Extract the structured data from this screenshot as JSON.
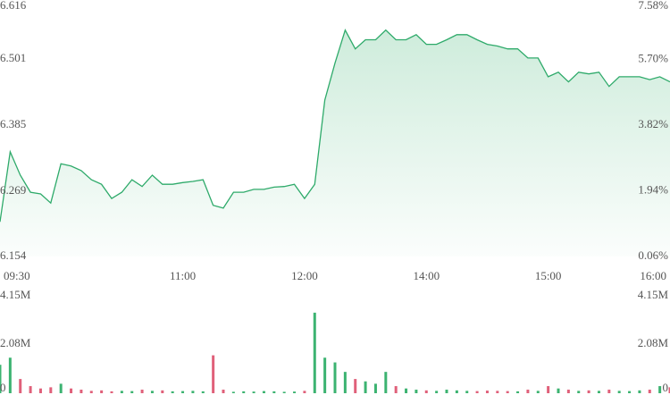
{
  "chart_data": [
    {
      "type": "area",
      "x": [
        "09:30",
        "09:35",
        "09:40",
        "09:45",
        "09:50",
        "09:55",
        "10:00",
        "10:05",
        "10:10",
        "10:15",
        "10:20",
        "10:25",
        "10:30",
        "10:35",
        "10:40",
        "10:45",
        "10:50",
        "10:55",
        "11:00",
        "11:05",
        "11:10",
        "11:15",
        "11:20",
        "11:25",
        "11:30",
        "11:35",
        "11:40",
        "11:45",
        "11:50",
        "11:55",
        "12:00",
        "13:05",
        "13:10",
        "13:15",
        "13:20",
        "13:25",
        "13:30",
        "13:35",
        "13:40",
        "13:45",
        "13:50",
        "13:55",
        "14:00",
        "14:05",
        "14:10",
        "14:15",
        "14:20",
        "14:25",
        "14:30",
        "14:35",
        "14:40",
        "14:45",
        "14:50",
        "14:55",
        "15:00",
        "15:05",
        "15:10",
        "15:15",
        "15:20",
        "15:25",
        "15:30",
        "15:35",
        "15:40",
        "15:45",
        "15:50",
        "15:55",
        "16:00"
      ],
      "values": [
        6.215,
        6.338,
        6.297,
        6.267,
        6.264,
        6.248,
        6.317,
        6.313,
        6.305,
        6.289,
        6.281,
        6.256,
        6.267,
        6.289,
        6.277,
        6.297,
        6.281,
        6.281,
        6.284,
        6.286,
        6.289,
        6.244,
        6.239,
        6.267,
        6.267,
        6.272,
        6.272,
        6.276,
        6.277,
        6.281,
        6.256,
        6.281,
        6.429,
        6.494,
        6.552,
        6.519,
        6.535,
        6.535,
        6.552,
        6.535,
        6.535,
        6.544,
        6.527,
        6.527,
        6.535,
        6.544,
        6.544,
        6.535,
        6.527,
        6.524,
        6.519,
        6.519,
        6.503,
        6.503,
        6.47,
        6.478,
        6.461,
        6.478,
        6.475,
        6.478,
        6.453,
        6.47,
        6.47,
        6.47,
        6.465,
        6.47,
        6.461
      ],
      "color": "#2eaa6a",
      "ylim": [
        6.154,
        6.616
      ],
      "yticks": [
        6.154,
        6.269,
        6.385,
        6.501,
        6.616
      ],
      "y2lim": [
        0.06,
        7.58
      ],
      "y2ticks": [
        {
          "value": 0.06,
          "label": "0.06%"
        },
        {
          "value": 1.94,
          "label": "1.94%"
        },
        {
          "value": 3.82,
          "label": "3.82%"
        },
        {
          "value": 5.7,
          "label": "5.70%"
        },
        {
          "value": 7.58,
          "label": "7.58%"
        }
      ],
      "xticks": [
        "09:30",
        "11:00",
        "12:00",
        "14:00",
        "15:00",
        "16:00"
      ]
    },
    {
      "type": "bar",
      "values": [
        1200000,
        1500000,
        600000,
        300000,
        200000,
        250000,
        400000,
        200000,
        150000,
        100000,
        120000,
        80000,
        100000,
        90000,
        150000,
        100000,
        120000,
        80000,
        90000,
        100000,
        80000,
        1600000,
        150000,
        60000,
        80000,
        70000,
        90000,
        80000,
        60000,
        70000,
        100000,
        3400000,
        1500000,
        1300000,
        900000,
        600000,
        500000,
        400000,
        900000,
        300000,
        200000,
        150000,
        120000,
        100000,
        150000,
        120000,
        100000,
        90000,
        110000,
        100000,
        90000,
        80000,
        150000,
        100000,
        300000,
        200000,
        150000,
        100000,
        120000,
        100000,
        150000,
        100000,
        90000,
        120000,
        150000,
        300000,
        250000
      ],
      "up_color": "#3cb371",
      "down_color": "#e0607a",
      "ylim": [
        0,
        4150000
      ],
      "yticks": [
        0,
        {
          "value": 2080000,
          "label": "2.08M"
        },
        {
          "value": 4150000,
          "label": "4.15M"
        }
      ]
    }
  ]
}
